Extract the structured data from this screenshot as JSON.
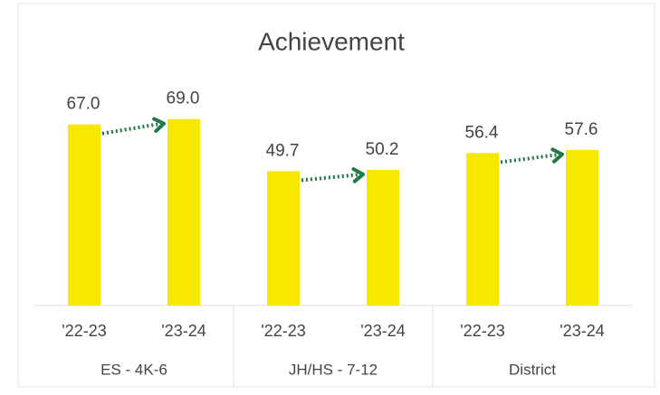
{
  "chart_data": {
    "type": "bar",
    "title": "Achievement",
    "groups": [
      "ES - 4K-6",
      "JH/HS - 7-12",
      "District"
    ],
    "categories": [
      "'22-23",
      "'23-24",
      "'22-23",
      "'23-24",
      "'22-23",
      "'23-24"
    ],
    "values": [
      67.0,
      69.0,
      49.7,
      50.2,
      56.4,
      57.6
    ],
    "value_labels": [
      "67.0",
      "69.0",
      "49.7",
      "50.2",
      "56.4",
      "57.6"
    ],
    "color": "#f7e800",
    "arrow_color": "#1f7a45",
    "ylim": [
      0,
      100
    ]
  }
}
